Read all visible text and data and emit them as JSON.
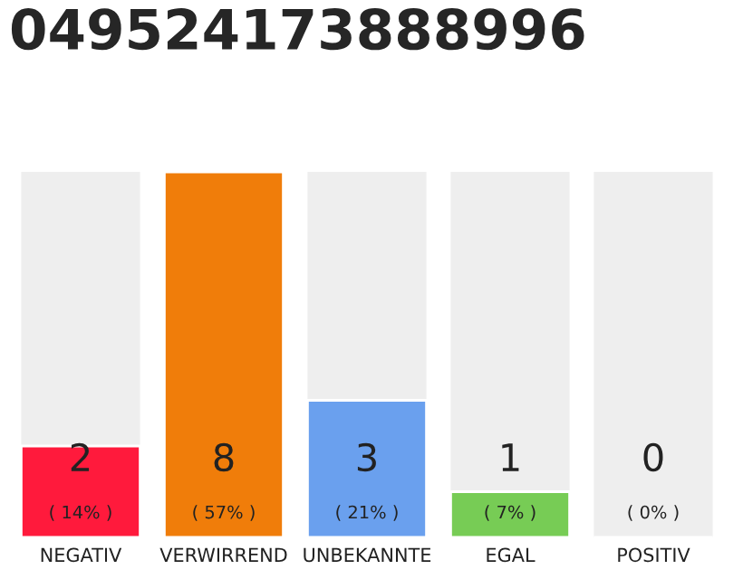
{
  "chart_data": {
    "type": "bar",
    "title": "049524173888996",
    "categories": [
      "NEGATIV",
      "VERWIRREND",
      "UNBEKANNTE",
      "EGAL",
      "POSITIV"
    ],
    "values": [
      2,
      8,
      3,
      1,
      0
    ],
    "ylim": [
      0,
      8
    ],
    "tick_labels": "x",
    "colors": [
      "#ff1a3c",
      "#f07d0a",
      "#6aa0ee",
      "#77cc55",
      null
    ],
    "value_labels": [
      "2\n( 14% )",
      "8\n( 57% )",
      "3\n( 21% )",
      "1\n( 7% )",
      "0\n( 0% )"
    ],
    "grid": false,
    "legend": false
  }
}
